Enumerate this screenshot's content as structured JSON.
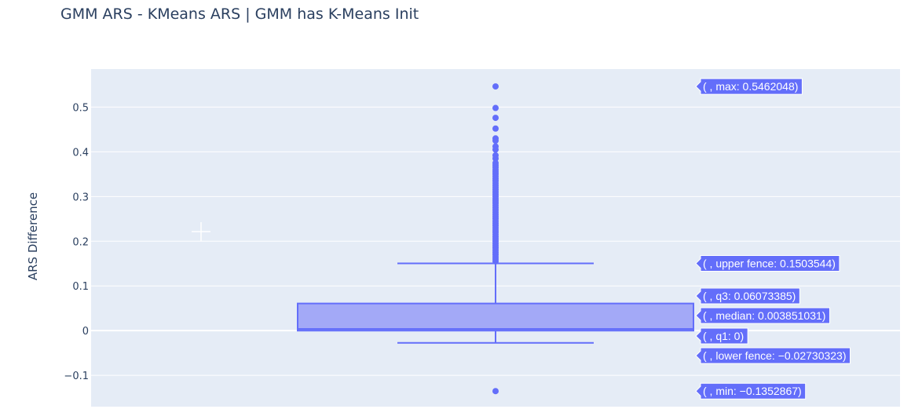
{
  "chart_data": {
    "type": "box",
    "title": "GMM ARS - KMeans ARS | GMM has K-Means Init",
    "ylabel": "ARS Difference",
    "ylim": [
      -0.17,
      0.585
    ],
    "yticks": [
      -0.1,
      0,
      0.1,
      0.2,
      0.3,
      0.4,
      0.5
    ],
    "ytick_labels": [
      "−0.1",
      "0",
      "0.1",
      "0.2",
      "0.3",
      "0.4",
      "0.5"
    ],
    "stats": {
      "min": -0.1352867,
      "lower_fence": -0.02730323,
      "q1": 0,
      "median": 0.003851031,
      "q3": 0.06073385,
      "upper_fence": 0.1503544,
      "max": 0.5462048
    },
    "outliers": [
      0.5462048,
      0.498,
      0.476,
      0.452,
      0.43,
      0.425,
      0.412,
      0.405,
      0.392,
      0.385,
      0.375,
      0.37,
      0.365,
      0.36,
      0.355,
      0.35,
      0.345,
      0.34,
      0.335,
      0.33,
      0.325,
      0.32,
      0.315,
      0.31,
      0.305,
      0.3,
      0.295,
      0.29,
      0.285,
      0.28,
      0.275,
      0.27,
      0.265,
      0.26,
      0.255,
      0.25,
      0.245,
      0.24,
      0.235,
      0.23,
      0.225,
      0.22,
      0.215,
      0.21,
      0.205,
      0.2,
      0.195,
      0.19,
      0.185,
      0.18,
      0.175,
      0.17,
      0.165,
      0.16,
      0.155,
      -0.1352867
    ],
    "hover_labels": [
      {
        "key": "max",
        "text": "( , max: 0.5462048)"
      },
      {
        "key": "upper_fence",
        "text": "( , upper fence: 0.1503544)"
      },
      {
        "key": "q3",
        "text": "( , q3: 0.06073385)"
      },
      {
        "key": "median",
        "text": "( , median: 0.003851031)"
      },
      {
        "key": "q1",
        "text": "( , q1: 0)"
      },
      {
        "key": "lower_fence",
        "text": "( , lower fence: −0.02730323)"
      },
      {
        "key": "min",
        "text": "( , min: −0.1352867)"
      }
    ],
    "grid": true,
    "colors": {
      "plot_bg": "#e5ecf6",
      "grid": "#ffffff",
      "box_line": "#636efa",
      "box_fill": "#a3a9f7",
      "hover_bg": "#636efa",
      "text": "#2a3f5f"
    }
  }
}
